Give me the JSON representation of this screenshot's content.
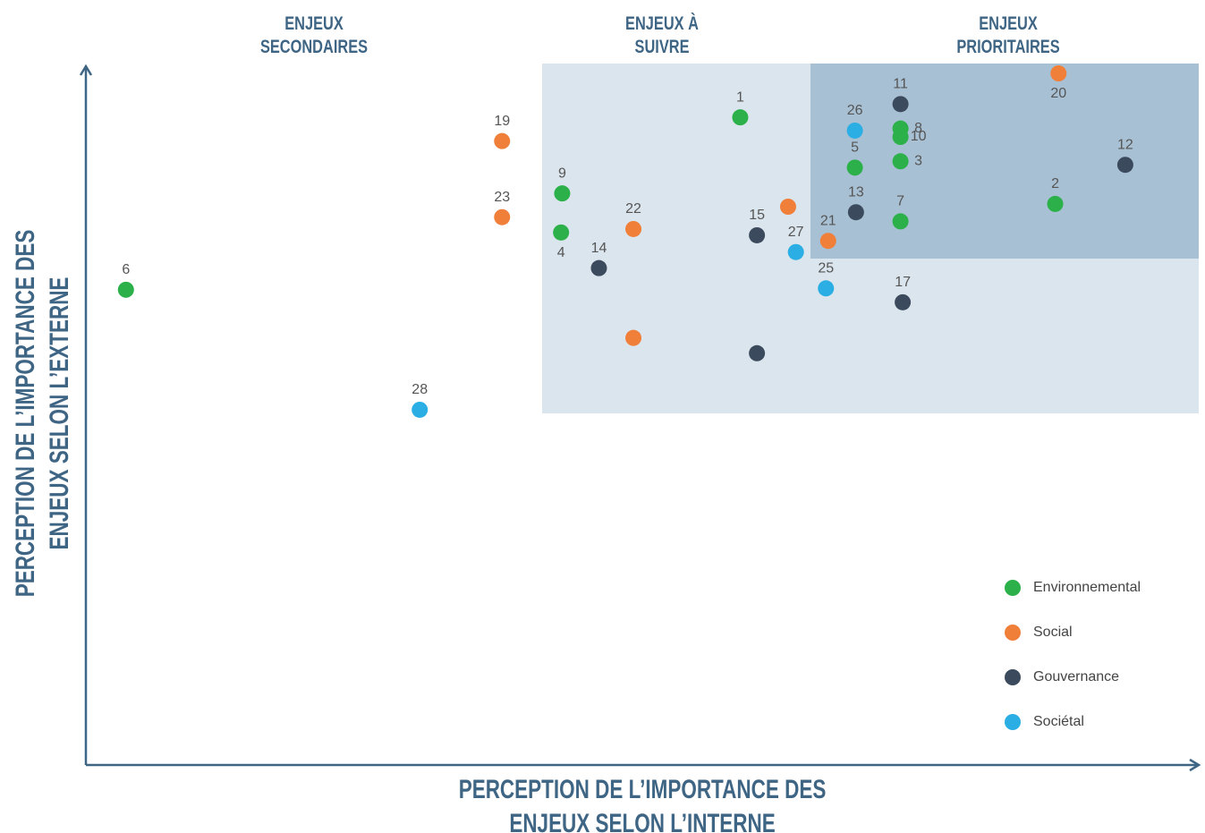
{
  "chart_data": {
    "type": "scatter",
    "zones": [
      {
        "lines": [
          "ENJEUX",
          "SECONDAIRES"
        ]
      },
      {
        "lines": [
          "ENJEUX À",
          "SUIVRE"
        ]
      },
      {
        "lines": [
          "ENJEUX",
          "PRIORITAIRES"
        ]
      }
    ],
    "x_label": [
      "PERCEPTION DE L’IMPORTANCE DES",
      "ENJEUX SELON L’INTERNE"
    ],
    "y_label": [
      "PERCEPTION DE L’IMPORTANCE DES",
      "ENJEUX SELON L’EXTERNE"
    ],
    "xlim": [
      0,
      100
    ],
    "ylim": [
      0,
      100
    ],
    "series": [
      {
        "name": "Environnemental",
        "color": "#2bb04a",
        "labels": [
          "6",
          "1",
          "9",
          "4",
          "5",
          "8",
          "10",
          "3",
          "7",
          "2"
        ],
        "x": [
          3.6,
          58.8,
          42.8,
          42.7,
          69.1,
          73.2,
          73.2,
          73.2,
          73.2,
          87.1
        ],
        "values": [
          68.1,
          92.8,
          81.9,
          76.3,
          85.6,
          91.2,
          90.0,
          86.5,
          77.9,
          80.4
        ]
      },
      {
        "name": "Social",
        "color": "#f07f3a",
        "labels": [
          "19",
          "23",
          "22",
          null,
          null,
          "21",
          "20"
        ],
        "x": [
          37.4,
          37.4,
          49.2,
          49.2,
          63.1,
          66.7,
          87.4
        ],
        "values": [
          89.4,
          78.5,
          76.8,
          61.2,
          80.0,
          75.1,
          99.1
        ]
      },
      {
        "name": "Gouvernance",
        "color": "#3c4a5e",
        "labels": [
          "14",
          "15",
          null,
          "13",
          "11",
          "17",
          "12"
        ],
        "x": [
          46.1,
          60.3,
          60.3,
          69.2,
          73.2,
          73.4,
          93.4
        ],
        "values": [
          71.2,
          75.9,
          59.0,
          79.2,
          94.7,
          66.3,
          86.0
        ]
      },
      {
        "name": "Sociétal",
        "color": "#2aaee4",
        "labels": [
          "28",
          "27",
          "25",
          "26"
        ],
        "x": [
          30.0,
          63.8,
          66.5,
          69.1
        ],
        "values": [
          50.9,
          73.5,
          68.3,
          90.9
        ]
      }
    ]
  }
}
